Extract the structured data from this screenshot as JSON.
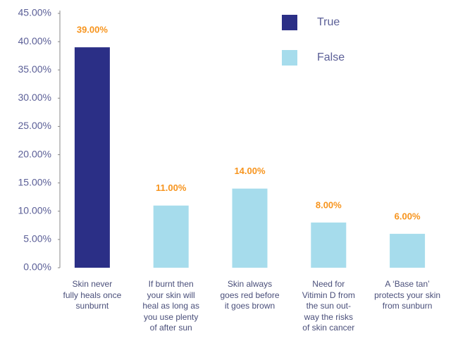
{
  "chart_data": {
    "type": "bar",
    "categories": [
      "Skin never\nfully heals once\nsunburnt",
      "If burnt then\nyour skin will\nheal as long as\nyou use plenty\nof after sun",
      "Skin always\ngoes red before\nit goes brown",
      "Need for\nVitimin D from\nthe sun out-\nway the risks\nof skin cancer",
      "A ‘Base tan’\nprotects your skin\nfrom sunburn"
    ],
    "series": [
      {
        "name": "True",
        "color": "#2b2f86",
        "values": [
          39,
          null,
          null,
          null,
          null
        ],
        "value_labels": [
          "39.00%",
          null,
          null,
          null,
          null
        ]
      },
      {
        "name": "False",
        "color": "#a6dcec",
        "values": [
          null,
          11,
          14,
          8,
          6
        ],
        "value_labels": [
          null,
          "11.00%",
          "14.00%",
          "8.00%",
          "6.00%"
        ]
      }
    ],
    "ylim": [
      0,
      45
    ],
    "yticks": [
      {
        "value": 0,
        "label": "0.00%"
      },
      {
        "value": 5,
        "label": "5.00%"
      },
      {
        "value": 10,
        "label": "10.00%"
      },
      {
        "value": 15,
        "label": "15.00%"
      },
      {
        "value": 20,
        "label": "20.00%"
      },
      {
        "value": 25,
        "label": "25.00%"
      },
      {
        "value": 30,
        "label": "30.00%"
      },
      {
        "value": 35,
        "label": "35.00%"
      },
      {
        "value": 40,
        "label": "40.00%"
      },
      {
        "value": 45,
        "label": "45.00%"
      }
    ],
    "legend": "top-right"
  }
}
